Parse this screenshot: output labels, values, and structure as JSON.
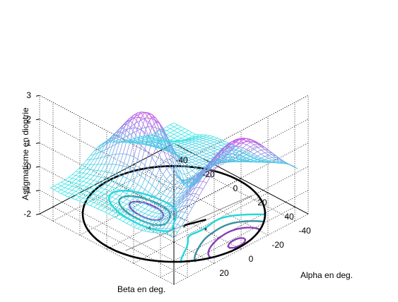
{
  "chart_data": {
    "type": "surface",
    "zlabel": "Astigmatisme en dioptrie",
    "xlabel": "Alpha en deg.",
    "ylabel": "Beta en deg.",
    "zlim": [
      -2,
      3
    ],
    "ztick_labels": [
      "-2",
      "-1",
      "0",
      "1",
      "2",
      "3"
    ],
    "alpha_lim": [
      -50,
      50
    ],
    "alpha_tick_labels": [
      "-40",
      "-20",
      "0",
      "20"
    ],
    "beta_lim": [
      -50,
      50
    ],
    "beta_tick_labels": [
      "-40",
      "-20",
      "0",
      "20",
      "40"
    ],
    "grid": true,
    "surface_colors": [
      "#33e6e6",
      "#e633e6"
    ],
    "contour_colors": [
      "#8a40b8",
      "#3a8fa0",
      "#22d8d8"
    ],
    "contour_plane_z": -2,
    "pupil_circle_color": "#000000"
  }
}
